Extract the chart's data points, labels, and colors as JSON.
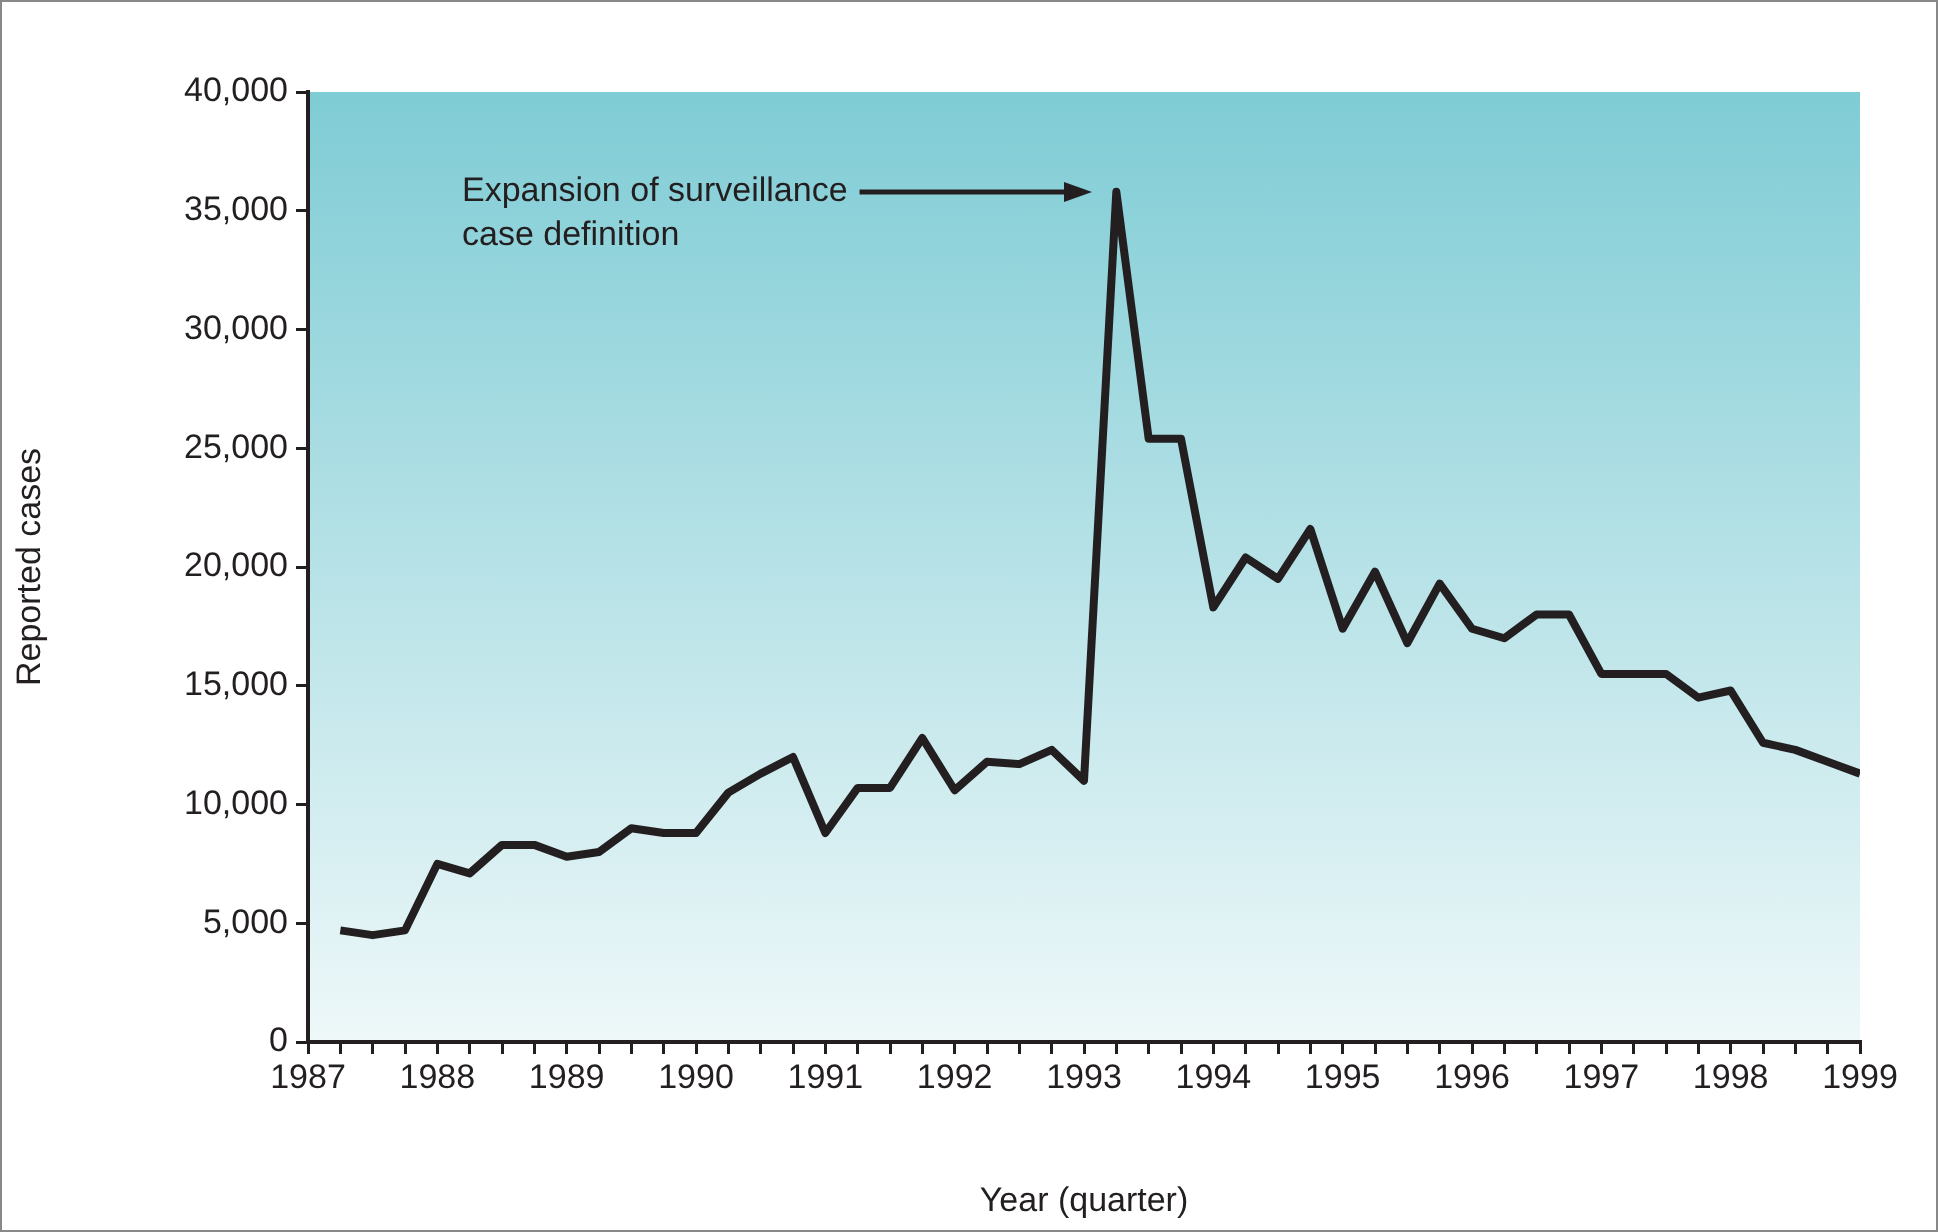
{
  "chart_data": {
    "type": "line",
    "xlabel": "Year (quarter)",
    "ylabel": "Reported cases",
    "x": [
      1987.25,
      1987.5,
      1987.75,
      1988,
      1988.25,
      1988.5,
      1988.75,
      1989,
      1989.25,
      1989.5,
      1989.75,
      1990,
      1990.25,
      1990.5,
      1990.75,
      1991,
      1991.25,
      1991.5,
      1991.75,
      1992,
      1992.25,
      1992.5,
      1992.75,
      1993,
      1993.25,
      1993.5,
      1993.75,
      1994,
      1994.25,
      1994.5,
      1994.75,
      1995,
      1995.25,
      1995.5,
      1995.75,
      1996,
      1996.25,
      1996.5,
      1996.75,
      1997,
      1997.25,
      1997.5,
      1997.75,
      1998,
      1998.25,
      1998.5,
      1998.75,
      1999
    ],
    "series": [
      {
        "color": "#231f20",
        "values": [
          4700,
          4500,
          4700,
          7500,
          7100,
          8300,
          8300,
          7800,
          8000,
          9000,
          8800,
          8800,
          10500,
          11300,
          12000,
          8800,
          10700,
          10700,
          12800,
          10600,
          11800,
          11700,
          12300,
          11000,
          35800,
          25400,
          25400,
          18300,
          20400,
          19500,
          21600,
          17400,
          19800,
          16800,
          19300,
          17400,
          17000,
          18000,
          18000,
          15500,
          15500,
          15500,
          14500,
          14800,
          12600,
          12300,
          11800,
          11300
        ]
      }
    ],
    "xlim": [
      1987,
      1999
    ],
    "xticks": [
      1987,
      {
        "value": 1987.25,
        "label": null
      },
      {
        "value": 1987.5,
        "label": null
      },
      {
        "value": 1987.75,
        "label": null
      },
      1988,
      {
        "value": 1988.25,
        "label": null
      },
      {
        "value": 1988.5,
        "label": null
      },
      {
        "value": 1988.75,
        "label": null
      },
      1989,
      {
        "value": 1989.25,
        "label": null
      },
      {
        "value": 1989.5,
        "label": null
      },
      {
        "value": 1989.75,
        "label": null
      },
      1990,
      {
        "value": 1990.25,
        "label": null
      },
      {
        "value": 1990.5,
        "label": null
      },
      {
        "value": 1990.75,
        "label": null
      },
      1991,
      {
        "value": 1991.25,
        "label": null
      },
      {
        "value": 1991.5,
        "label": null
      },
      {
        "value": 1991.75,
        "label": null
      },
      1992,
      {
        "value": 1992.25,
        "label": null
      },
      {
        "value": 1992.5,
        "label": null
      },
      {
        "value": 1992.75,
        "label": null
      },
      1993,
      {
        "value": 1993.25,
        "label": null
      },
      {
        "value": 1993.5,
        "label": null
      },
      {
        "value": 1993.75,
        "label": null
      },
      1994,
      {
        "value": 1994.25,
        "label": null
      },
      {
        "value": 1994.5,
        "label": null
      },
      {
        "value": 1994.75,
        "label": null
      },
      1995,
      {
        "value": 1995.25,
        "label": null
      },
      {
        "value": 1995.5,
        "label": null
      },
      {
        "value": 1995.75,
        "label": null
      },
      1996,
      {
        "value": 1996.25,
        "label": null
      },
      {
        "value": 1996.5,
        "label": null
      },
      {
        "value": 1996.75,
        "label": null
      },
      1997,
      {
        "value": 1997.25,
        "label": null
      },
      {
        "value": 1997.5,
        "label": null
      },
      {
        "value": 1997.75,
        "label": null
      },
      1998,
      {
        "value": 1998.25,
        "label": null
      },
      {
        "value": 1998.5,
        "label": null
      },
      {
        "value": 1998.75,
        "label": null
      },
      1999
    ],
    "ylim": [
      0,
      40000
    ],
    "yticks": [
      {
        "value": 0,
        "label": "0"
      },
      {
        "value": 5000,
        "label": "5,000"
      },
      {
        "value": 10000,
        "label": "10,000"
      },
      {
        "value": 15000,
        "label": "15,000"
      },
      {
        "value": 20000,
        "label": "20,000"
      },
      {
        "value": 25000,
        "label": "25,000"
      },
      {
        "value": 30000,
        "label": "30,000"
      },
      {
        "value": 35000,
        "label": "35,000"
      },
      {
        "value": 40000,
        "label": "40,000"
      }
    ],
    "grid": false,
    "legend": false,
    "marker": "none",
    "line_style": "solid",
    "annotations": [
      "Expansion of surveillance case definition"
    ]
  }
}
